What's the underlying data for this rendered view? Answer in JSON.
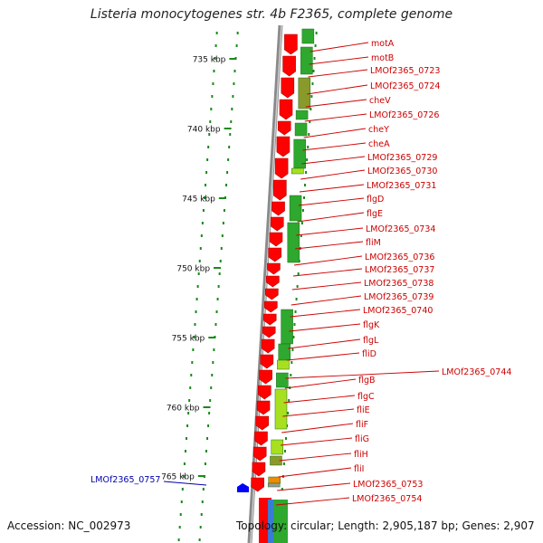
{
  "title": "Listeria monocytogenes str. 4b F2365, complete genome",
  "footer": {
    "accession": "Accession: NC_002973",
    "topology": "Topology: circular; Length: 2,905,187 bp; Genes: 2,907"
  },
  "colors": {
    "forward_cds": "#ff0000",
    "orf_green": "#2ea82e",
    "orf_olive": "#8a9a2a",
    "orf_lime": "#a8e020",
    "orf_orange": "#f08a00",
    "reverse_cds": "#0000ff",
    "label_red": "#cc0000",
    "label_blue": "#0000aa",
    "backbone": "#8a8a8a",
    "dots": "#1a8a1a"
  },
  "ruler_ticks": [
    "735 kbp",
    "740 kbp",
    "745 kbp",
    "750 kbp",
    "755 kbp",
    "760 kbp",
    "765 kbp"
  ],
  "right_labels": [
    "motA",
    "motB",
    "LMOf2365_0723",
    "LMOf2365_0724",
    "cheV",
    "LMOf2365_0726",
    "cheY",
    "cheA",
    "LMOf2365_0729",
    "LMOf2365_0730",
    "LMOf2365_0731",
    "flgD",
    "flgE",
    "LMOf2365_0734",
    "fliM",
    "LMOf2365_0736",
    "LMOf2365_0737",
    "LMOf2365_0738",
    "LMOf2365_0739",
    "LMOf2365_0740",
    "flgK",
    "flgL",
    "fliD",
    "LMOf2365_0744",
    "flgB",
    "flgC",
    "fliE",
    "fliF",
    "fliG",
    "fliH",
    "fliI",
    "LMOf2365_0753",
    "LMOf2365_0754"
  ],
  "left_labels": [
    "LMOf2365_0757"
  ]
}
